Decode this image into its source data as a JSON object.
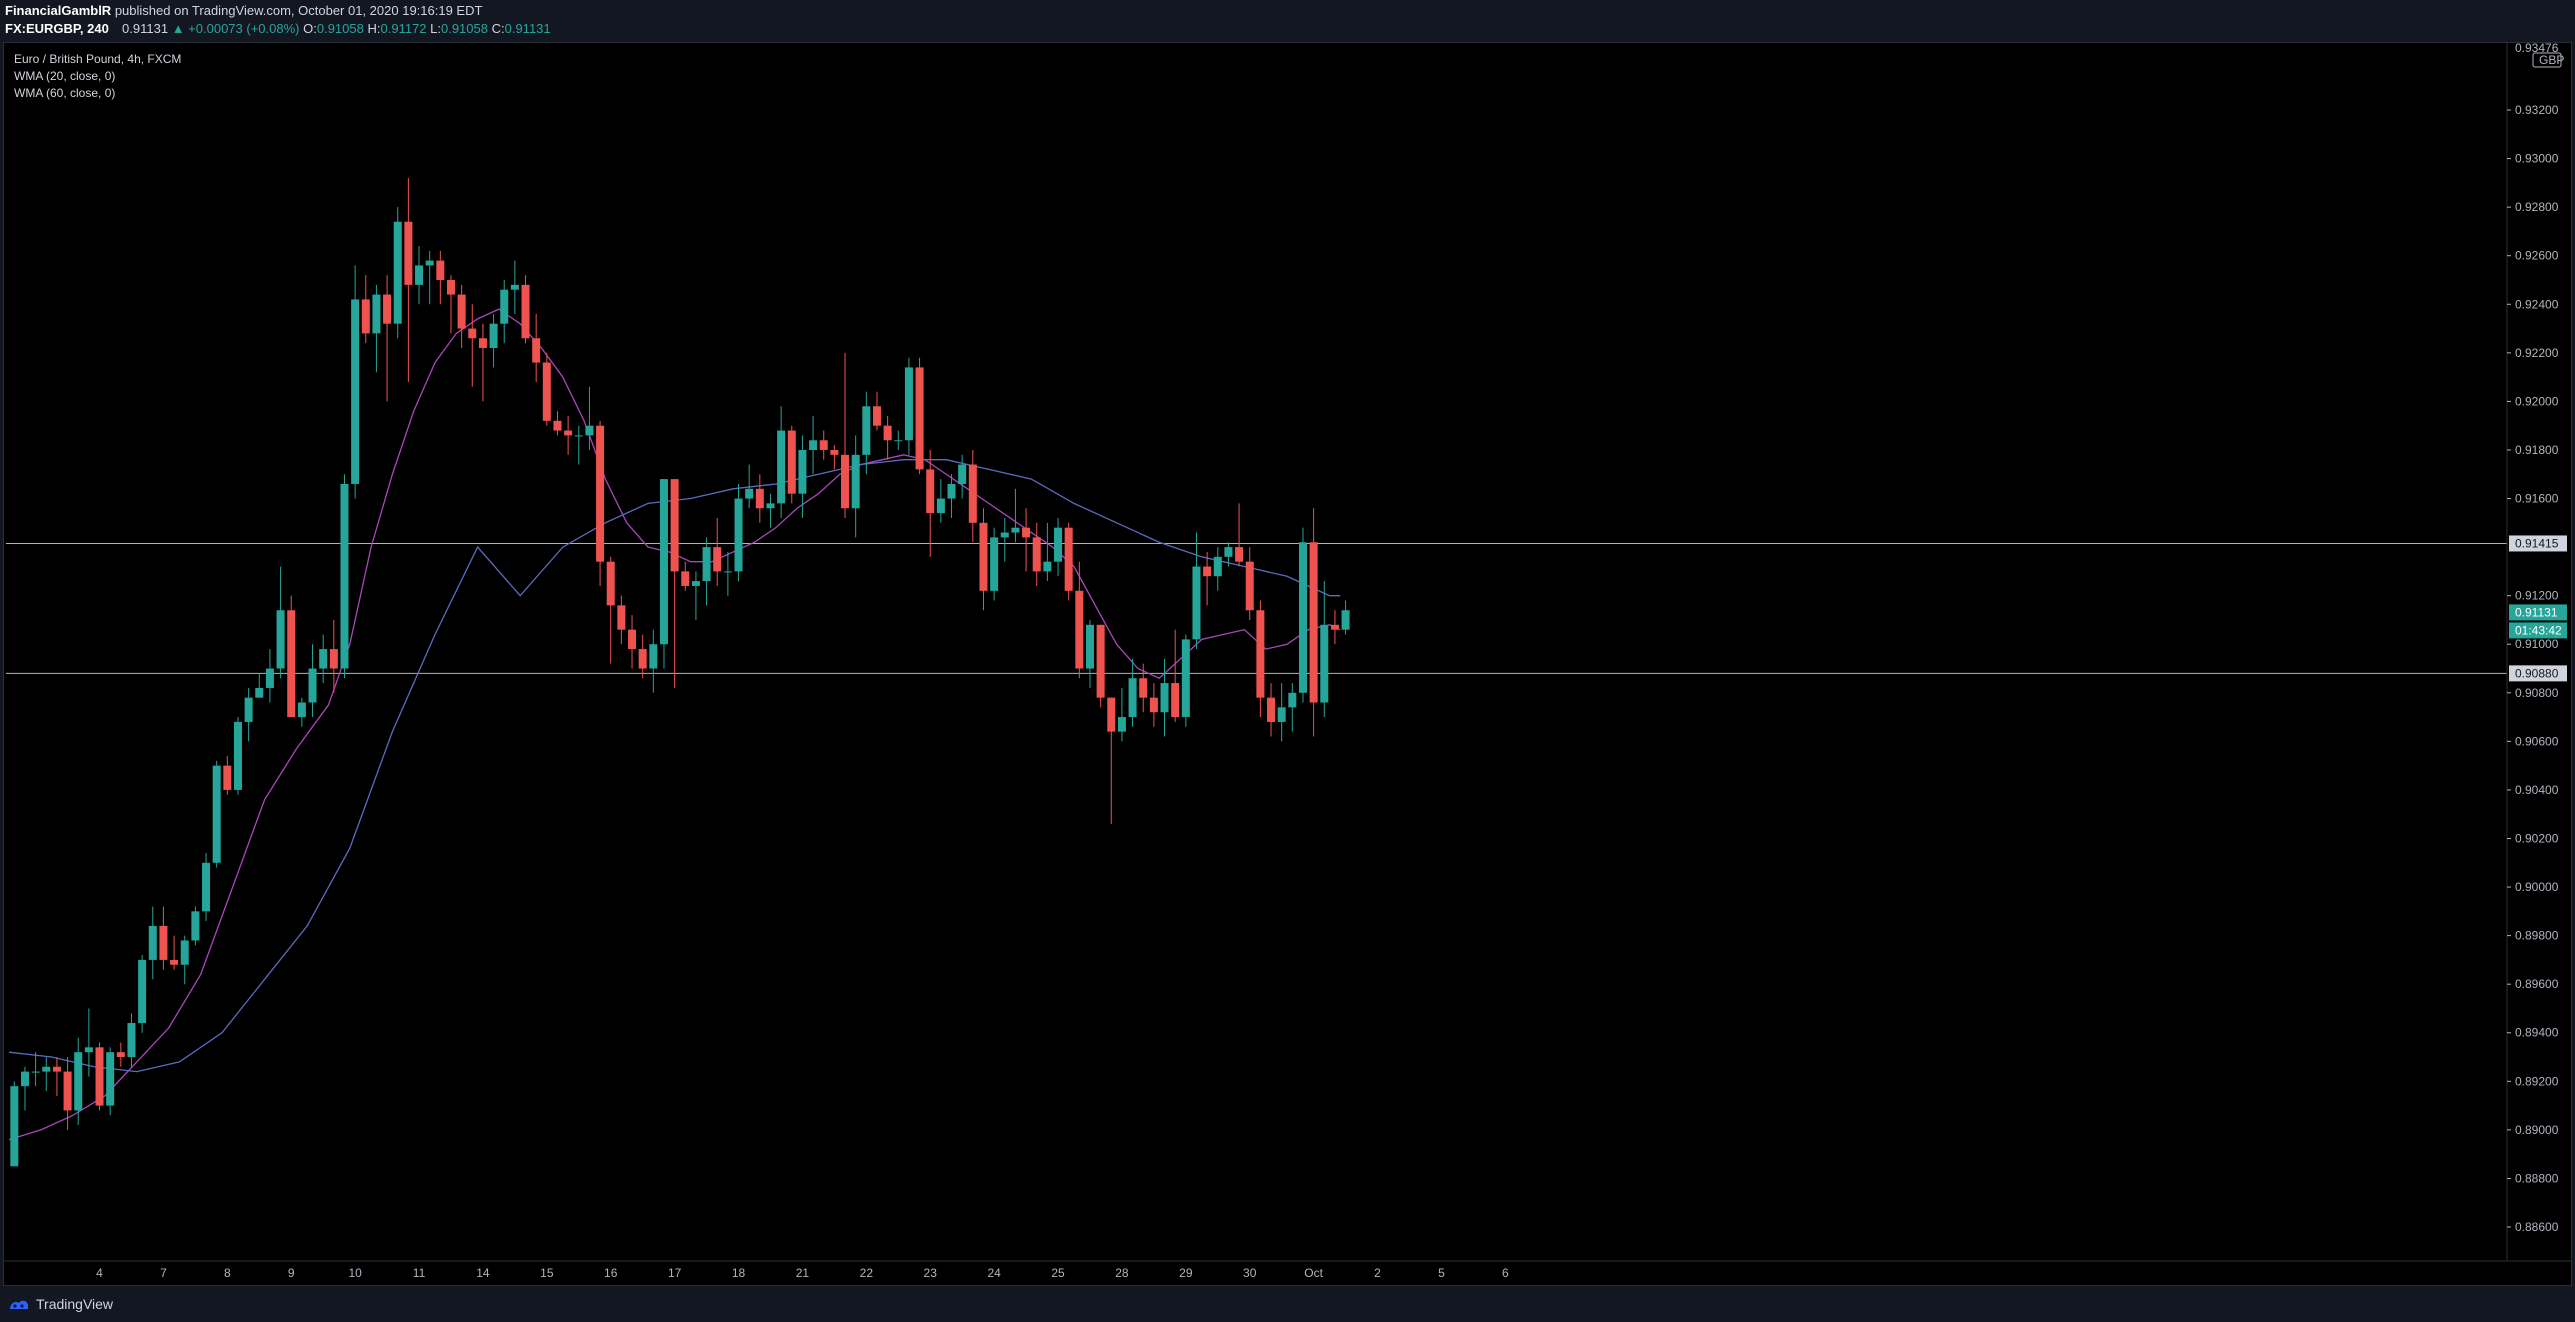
{
  "header": {
    "publisher": "FinancialGamblR",
    "published_text": "published on TradingView.com, October 01, 2020 19:16:19 EDT",
    "symbol": "FX:EURGBP, 240",
    "last": "0.91131",
    "change": "▲ +0.00073 (+0.08%)",
    "o_label": "O:",
    "o_value": "0.91058",
    "h_label": "H:",
    "h_value": "0.91172",
    "l_label": "L:",
    "l_value": "0.91058",
    "c_label": "C:",
    "c_value": "0.91131"
  },
  "legend": {
    "title": "Euro / British Pound, 4h, FXCM",
    "wma20": "WMA (20, close, 0)",
    "wma60": "WMA (60, close, 0)"
  },
  "footer": {
    "brand": "TradingView"
  },
  "colors": {
    "up": "#26a69a",
    "down": "#ef5350",
    "wma20": "#ab47bc",
    "wma60": "#5c6bc0",
    "hline": "#d1d4dc",
    "last_price_bg": "#26a69a"
  },
  "chart_data": {
    "type": "candlestick",
    "title": "Euro / British Pound, 4h, FXCM",
    "currency_label": "GBP",
    "ylim": [
      0.8846,
      0.93476
    ],
    "y_ticks": [
      "0.93200",
      "0.93000",
      "0.92800",
      "0.92600",
      "0.92400",
      "0.92200",
      "0.92000",
      "0.91800",
      "0.91600",
      "0.91200",
      "0.91000",
      "0.90800",
      "0.90600",
      "0.90400",
      "0.90200",
      "0.90000",
      "0.89800",
      "0.89600",
      "0.89400",
      "0.89200",
      "0.89000",
      "0.88800",
      "0.88600"
    ],
    "top_tick": "0.93476",
    "x_ticks": [
      {
        "label": "4",
        "bar": 8.5
      },
      {
        "label": "7",
        "bar": 14.5
      },
      {
        "label": "8",
        "bar": 20.5
      },
      {
        "label": "9",
        "bar": 26.5
      },
      {
        "label": "10",
        "bar": 32.5
      },
      {
        "label": "11",
        "bar": 38.5
      },
      {
        "label": "14",
        "bar": 44.5
      },
      {
        "label": "15",
        "bar": 50.5
      },
      {
        "label": "16",
        "bar": 56.5
      },
      {
        "label": "17",
        "bar": 62.5
      },
      {
        "label": "18",
        "bar": 68.5
      },
      {
        "label": "21",
        "bar": 74.5
      },
      {
        "label": "22",
        "bar": 80.5
      },
      {
        "label": "23",
        "bar": 86.5
      },
      {
        "label": "24",
        "bar": 92.5
      },
      {
        "label": "25",
        "bar": 98.5
      },
      {
        "label": "28",
        "bar": 104.5
      },
      {
        "label": "29",
        "bar": 110.5
      },
      {
        "label": "30",
        "bar": 116.5
      },
      {
        "label": "Oct",
        "bar": 122.5
      },
      {
        "label": "2",
        "bar": 128.5
      },
      {
        "label": "5",
        "bar": 134.5
      },
      {
        "label": "6",
        "bar": 140.5
      }
    ],
    "bar_start_x": 0.5,
    "bar_step": 1,
    "candles": [
      [
        0.8885,
        0.892,
        0.8885,
        0.8918
      ],
      [
        0.8918,
        0.8926,
        0.8908,
        0.8924
      ],
      [
        0.8924,
        0.8932,
        0.8918,
        0.8924
      ],
      [
        0.8924,
        0.893,
        0.8916,
        0.8926
      ],
      [
        0.8926,
        0.893,
        0.8914,
        0.8924
      ],
      [
        0.8924,
        0.893,
        0.89,
        0.8908
      ],
      [
        0.8908,
        0.8938,
        0.8902,
        0.8932
      ],
      [
        0.8932,
        0.895,
        0.8922,
        0.8934
      ],
      [
        0.8934,
        0.8936,
        0.8908,
        0.891
      ],
      [
        0.891,
        0.8934,
        0.8906,
        0.8932
      ],
      [
        0.8932,
        0.8936,
        0.8926,
        0.893
      ],
      [
        0.893,
        0.8948,
        0.8926,
        0.8944
      ],
      [
        0.8944,
        0.8972,
        0.894,
        0.897
      ],
      [
        0.897,
        0.8992,
        0.8962,
        0.8984
      ],
      [
        0.8984,
        0.8992,
        0.8966,
        0.897
      ],
      [
        0.897,
        0.898,
        0.8966,
        0.8968
      ],
      [
        0.8968,
        0.898,
        0.896,
        0.8978
      ],
      [
        0.8978,
        0.8992,
        0.8976,
        0.899
      ],
      [
        0.899,
        0.9014,
        0.8986,
        0.901
      ],
      [
        0.901,
        0.9052,
        0.9008,
        0.905
      ],
      [
        0.905,
        0.9054,
        0.9038,
        0.904
      ],
      [
        0.904,
        0.907,
        0.9038,
        0.9068
      ],
      [
        0.9068,
        0.9082,
        0.906,
        0.9078
      ],
      [
        0.9078,
        0.9088,
        0.9078,
        0.9082
      ],
      [
        0.9082,
        0.9098,
        0.9076,
        0.909
      ],
      [
        0.909,
        0.9132,
        0.9086,
        0.9114
      ],
      [
        0.9114,
        0.912,
        0.907,
        0.907
      ],
      [
        0.907,
        0.9078,
        0.9066,
        0.9076
      ],
      [
        0.9076,
        0.91,
        0.907,
        0.909
      ],
      [
        0.909,
        0.9104,
        0.9084,
        0.9098
      ],
      [
        0.9098,
        0.911,
        0.908,
        0.909
      ],
      [
        0.909,
        0.917,
        0.9086,
        0.9166
      ],
      [
        0.9166,
        0.9256,
        0.916,
        0.9242
      ],
      [
        0.9242,
        0.9252,
        0.9224,
        0.9228
      ],
      [
        0.9228,
        0.9248,
        0.9212,
        0.9244
      ],
      [
        0.9244,
        0.9252,
        0.92,
        0.9232
      ],
      [
        0.9232,
        0.928,
        0.9226,
        0.9274
      ],
      [
        0.9274,
        0.9292,
        0.9208,
        0.9248
      ],
      [
        0.9248,
        0.9264,
        0.924,
        0.9256
      ],
      [
        0.9256,
        0.9262,
        0.924,
        0.9258
      ],
      [
        0.9258,
        0.9262,
        0.924,
        0.925
      ],
      [
        0.925,
        0.9252,
        0.9228,
        0.9244
      ],
      [
        0.9244,
        0.9248,
        0.9222,
        0.923
      ],
      [
        0.923,
        0.924,
        0.9206,
        0.9226
      ],
      [
        0.9226,
        0.9232,
        0.92,
        0.9222
      ],
      [
        0.9222,
        0.9236,
        0.9214,
        0.9232
      ],
      [
        0.9232,
        0.925,
        0.9224,
        0.9246
      ],
      [
        0.9246,
        0.9258,
        0.9236,
        0.9248
      ],
      [
        0.9248,
        0.9252,
        0.9224,
        0.9226
      ],
      [
        0.9226,
        0.9236,
        0.9208,
        0.9216
      ],
      [
        0.9216,
        0.922,
        0.919,
        0.9192
      ],
      [
        0.9192,
        0.9196,
        0.9186,
        0.9188
      ],
      [
        0.9188,
        0.9194,
        0.9178,
        0.9186
      ],
      [
        0.9186,
        0.919,
        0.9174,
        0.9186
      ],
      [
        0.9186,
        0.9206,
        0.918,
        0.919
      ],
      [
        0.919,
        0.9192,
        0.9124,
        0.9134
      ],
      [
        0.9134,
        0.9136,
        0.9092,
        0.9116
      ],
      [
        0.9116,
        0.912,
        0.91,
        0.9106
      ],
      [
        0.9106,
        0.9112,
        0.909,
        0.9098
      ],
      [
        0.9098,
        0.9104,
        0.9086,
        0.909
      ],
      [
        0.909,
        0.9106,
        0.908,
        0.91
      ],
      [
        0.91,
        0.9168,
        0.909,
        0.9168
      ],
      [
        0.9168,
        0.9168,
        0.9082,
        0.913
      ],
      [
        0.913,
        0.9134,
        0.9122,
        0.9124
      ],
      [
        0.9124,
        0.913,
        0.911,
        0.9126
      ],
      [
        0.9126,
        0.9144,
        0.9116,
        0.914
      ],
      [
        0.914,
        0.9152,
        0.9124,
        0.913
      ],
      [
        0.913,
        0.9138,
        0.912,
        0.913
      ],
      [
        0.913,
        0.9166,
        0.9126,
        0.916
      ],
      [
        0.916,
        0.9174,
        0.9156,
        0.9164
      ],
      [
        0.9164,
        0.917,
        0.915,
        0.9156
      ],
      [
        0.9156,
        0.9162,
        0.9148,
        0.9158
      ],
      [
        0.9158,
        0.9198,
        0.9152,
        0.9188
      ],
      [
        0.9188,
        0.919,
        0.9158,
        0.9162
      ],
      [
        0.9162,
        0.9186,
        0.9152,
        0.918
      ],
      [
        0.918,
        0.9194,
        0.917,
        0.9184
      ],
      [
        0.9184,
        0.9188,
        0.9176,
        0.918
      ],
      [
        0.918,
        0.9182,
        0.9172,
        0.9178
      ],
      [
        0.9178,
        0.922,
        0.9152,
        0.9156
      ],
      [
        0.9156,
        0.9186,
        0.9144,
        0.9178
      ],
      [
        0.9178,
        0.9204,
        0.917,
        0.9198
      ],
      [
        0.9198,
        0.9204,
        0.9188,
        0.919
      ],
      [
        0.919,
        0.9194,
        0.9176,
        0.9184
      ],
      [
        0.9184,
        0.9188,
        0.918,
        0.9184
      ],
      [
        0.9184,
        0.9218,
        0.9178,
        0.9214
      ],
      [
        0.9214,
        0.9218,
        0.917,
        0.9172
      ],
      [
        0.9172,
        0.918,
        0.9136,
        0.9154
      ],
      [
        0.9154,
        0.9168,
        0.915,
        0.916
      ],
      [
        0.916,
        0.917,
        0.9152,
        0.9166
      ],
      [
        0.9166,
        0.9178,
        0.916,
        0.9174
      ],
      [
        0.9174,
        0.918,
        0.9142,
        0.915
      ],
      [
        0.915,
        0.9156,
        0.9114,
        0.9122
      ],
      [
        0.9122,
        0.9148,
        0.9118,
        0.9144
      ],
      [
        0.9144,
        0.9152,
        0.9134,
        0.9146
      ],
      [
        0.9146,
        0.9164,
        0.9142,
        0.9148
      ],
      [
        0.9148,
        0.9156,
        0.913,
        0.9144
      ],
      [
        0.9144,
        0.915,
        0.9124,
        0.913
      ],
      [
        0.913,
        0.915,
        0.9126,
        0.9134
      ],
      [
        0.9134,
        0.9152,
        0.9128,
        0.9148
      ],
      [
        0.9148,
        0.915,
        0.9118,
        0.9122
      ],
      [
        0.9122,
        0.9134,
        0.9086,
        0.909
      ],
      [
        0.909,
        0.911,
        0.9082,
        0.9108
      ],
      [
        0.9108,
        0.9108,
        0.9074,
        0.9078
      ],
      [
        0.9078,
        0.9078,
        0.9026,
        0.9064
      ],
      [
        0.9064,
        0.9082,
        0.906,
        0.907
      ],
      [
        0.907,
        0.9094,
        0.9066,
        0.9086
      ],
      [
        0.9086,
        0.9092,
        0.9072,
        0.9078
      ],
      [
        0.9078,
        0.9084,
        0.9066,
        0.9072
      ],
      [
        0.9072,
        0.9094,
        0.9062,
        0.9084
      ],
      [
        0.9084,
        0.9106,
        0.9068,
        0.907
      ],
      [
        0.907,
        0.9104,
        0.9066,
        0.9102
      ],
      [
        0.9102,
        0.9146,
        0.9098,
        0.9132
      ],
      [
        0.9132,
        0.9138,
        0.9116,
        0.9128
      ],
      [
        0.9128,
        0.914,
        0.9122,
        0.9136
      ],
      [
        0.9136,
        0.9142,
        0.9132,
        0.914
      ],
      [
        0.914,
        0.9158,
        0.9132,
        0.9134
      ],
      [
        0.9134,
        0.914,
        0.911,
        0.9114
      ],
      [
        0.9114,
        0.9118,
        0.907,
        0.9078
      ],
      [
        0.9078,
        0.9084,
        0.9062,
        0.9068
      ],
      [
        0.9068,
        0.9084,
        0.906,
        0.9074
      ],
      [
        0.9074,
        0.9084,
        0.9064,
        0.908
      ],
      [
        0.908,
        0.9148,
        0.9076,
        0.9142
      ],
      [
        0.9142,
        0.9156,
        0.9062,
        0.9076
      ],
      [
        0.9076,
        0.9126,
        0.907,
        0.9108
      ],
      [
        0.9108,
        0.9114,
        0.91,
        0.9106
      ],
      [
        0.9106,
        0.9118,
        0.9104,
        0.9114
      ]
    ],
    "series": [
      {
        "name": "WMA (20, close, 0)",
        "x": [
          0,
          3,
          6,
          9,
          12,
          15,
          18,
          21,
          24,
          27,
          30,
          32,
          34,
          36,
          38,
          40,
          42,
          44,
          46,
          48,
          50,
          52,
          54,
          56,
          58,
          60,
          62,
          64,
          66,
          68,
          70,
          72,
          74,
          76,
          78,
          80,
          82,
          84,
          86,
          88,
          90,
          92,
          94,
          96,
          98,
          100,
          102,
          104,
          106,
          108,
          110,
          112,
          114,
          116,
          118,
          120,
          122,
          124,
          125
        ],
        "values": [
          0.8896,
          0.89,
          0.8906,
          0.8914,
          0.8928,
          0.8942,
          0.8964,
          0.9,
          0.9036,
          0.9057,
          0.9075,
          0.91,
          0.914,
          0.917,
          0.9196,
          0.9216,
          0.9228,
          0.9234,
          0.9238,
          0.9232,
          0.9222,
          0.921,
          0.9192,
          0.9168,
          0.915,
          0.914,
          0.9138,
          0.9134,
          0.9134,
          0.9138,
          0.9142,
          0.9148,
          0.9156,
          0.9162,
          0.917,
          0.9174,
          0.9176,
          0.9178,
          0.9176,
          0.917,
          0.9164,
          0.9158,
          0.9152,
          0.9146,
          0.914,
          0.9132,
          0.9116,
          0.91,
          0.909,
          0.9086,
          0.9094,
          0.9102,
          0.9104,
          0.9106,
          0.9098,
          0.91,
          0.9106,
          0.9108,
          0.9106
        ]
      },
      {
        "name": "WMA (60, close, 0)",
        "x": [
          0,
          4,
          8,
          12,
          16,
          20,
          24,
          28,
          32,
          36,
          40,
          44,
          48,
          52,
          56,
          60,
          64,
          68,
          72,
          76,
          80,
          84,
          88,
          92,
          96,
          100,
          104,
          108,
          112,
          116,
          120,
          124,
          125
        ],
        "values": [
          0.8932,
          0.893,
          0.8926,
          0.8924,
          0.8928,
          0.894,
          0.8962,
          0.8984,
          0.9016,
          0.9064,
          0.9104,
          0.914,
          0.912,
          0.914,
          0.915,
          0.9158,
          0.916,
          0.9164,
          0.9166,
          0.917,
          0.9174,
          0.9176,
          0.9176,
          0.9172,
          0.9168,
          0.9158,
          0.915,
          0.9142,
          0.9136,
          0.9132,
          0.9128,
          0.912,
          0.912
        ]
      }
    ],
    "horizontal_lines": [
      0.91415,
      0.9088
    ],
    "price_labels": {
      "line_upper": "0.91415",
      "line_lower": "0.90880",
      "last_price": "0.91131",
      "countdown": "01:43:42"
    },
    "legend_placement": "top-left",
    "grid": false
  }
}
